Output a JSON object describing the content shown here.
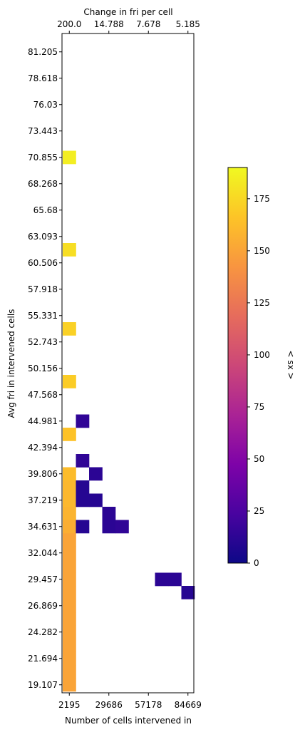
{
  "chart_data": {
    "type": "heatmap",
    "xlabel": "Number of cells intervened in",
    "ylabel": "Avg fri in intervened cells",
    "top_xlabel": "Change in fri per cell",
    "colorbar_label": "< sx >",
    "colormap": "plasma",
    "value_range": [
      0,
      190
    ],
    "grid": false,
    "legend": "colorbar right",
    "n_cols": 10,
    "n_rows": 30,
    "x_ticks": [
      {
        "col": 0.5,
        "label": "2195"
      },
      {
        "col": 3.5,
        "label": "29686"
      },
      {
        "col": 6.5,
        "label": "57178"
      },
      {
        "col": 9.5,
        "label": "84669"
      }
    ],
    "top_ticks": [
      {
        "col": 0.5,
        "label": "200.0"
      },
      {
        "col": 3.5,
        "label": "14.788"
      },
      {
        "col": 6.5,
        "label": "7.678"
      },
      {
        "col": 9.5,
        "label": "5.185"
      }
    ],
    "y_ticks": [
      {
        "row": 0.5,
        "label": "19.107"
      },
      {
        "row": 2.5,
        "label": "21.694"
      },
      {
        "row": 4.5,
        "label": "24.282"
      },
      {
        "row": 6.5,
        "label": "26.869"
      },
      {
        "row": 8.5,
        "label": "29.457"
      },
      {
        "row": 10.5,
        "label": "32.044"
      },
      {
        "row": 12.5,
        "label": "34.631"
      },
      {
        "row": 14.5,
        "label": "37.219"
      },
      {
        "row": 16.5,
        "label": "39.806"
      },
      {
        "row": 18.5,
        "label": "42.394"
      },
      {
        "row": 20.5,
        "label": "44.981"
      },
      {
        "row": 22.5,
        "label": "47.568"
      },
      {
        "row": 24.5,
        "label": "50.156"
      },
      {
        "row": 26.5,
        "label": "52.743"
      },
      {
        "row": 28.5,
        "label": "55.331"
      },
      {
        "row": 30.5,
        "label": "57.918"
      },
      {
        "row": 32.5,
        "label": "60.506"
      },
      {
        "row": 34.5,
        "label": "63.093"
      },
      {
        "row": 36.5,
        "label": "65.68"
      },
      {
        "row": 38.5,
        "label": "68.268"
      },
      {
        "row": 40.5,
        "label": "70.855"
      },
      {
        "row": 42.5,
        "label": "73.443"
      },
      {
        "row": 44.5,
        "label": "76.03"
      },
      {
        "row": 46.5,
        "label": "78.618"
      },
      {
        "row": 48.5,
        "label": "81.205"
      }
    ],
    "colorbar_ticks": [
      {
        "value": 0,
        "label": "0"
      },
      {
        "value": 25,
        "label": "25"
      },
      {
        "value": 50,
        "label": "50"
      },
      {
        "value": 75,
        "label": "75"
      },
      {
        "value": 100,
        "label": "100"
      },
      {
        "value": 125,
        "label": "125"
      },
      {
        "value": 150,
        "label": "150"
      },
      {
        "value": 175,
        "label": "175"
      }
    ],
    "cells": [
      {
        "col": 0,
        "row": 0,
        "value": 150
      },
      {
        "col": 0,
        "row": 1,
        "value": 150
      },
      {
        "col": 0,
        "row": 2,
        "value": 150
      },
      {
        "col": 0,
        "row": 3,
        "value": 150
      },
      {
        "col": 0,
        "row": 4,
        "value": 150
      },
      {
        "col": 0,
        "row": 5,
        "value": 150
      },
      {
        "col": 0,
        "row": 6,
        "value": 150
      },
      {
        "col": 0,
        "row": 7,
        "value": 150
      },
      {
        "col": 0,
        "row": 8,
        "value": 150
      },
      {
        "col": 0,
        "row": 9,
        "value": 150
      },
      {
        "col": 0,
        "row": 10,
        "value": 150
      },
      {
        "col": 0,
        "row": 11,
        "value": 150
      },
      {
        "col": 0,
        "row": 12,
        "value": 155
      },
      {
        "col": 0,
        "row": 13,
        "value": 158
      },
      {
        "col": 0,
        "row": 14,
        "value": 160
      },
      {
        "col": 0,
        "row": 15,
        "value": 160
      },
      {
        "col": 0,
        "row": 16,
        "value": 162
      },
      {
        "col": 0,
        "row": 19,
        "value": 165
      },
      {
        "col": 0,
        "row": 23,
        "value": 170
      },
      {
        "col": 0,
        "row": 27,
        "value": 172
      },
      {
        "col": 0,
        "row": 33,
        "value": 178
      },
      {
        "col": 0,
        "row": 40,
        "value": 185
      },
      {
        "col": 1,
        "row": 12,
        "value": 10
      },
      {
        "col": 1,
        "row": 14,
        "value": 10
      },
      {
        "col": 1,
        "row": 15,
        "value": 10
      },
      {
        "col": 1,
        "row": 17,
        "value": 14
      },
      {
        "col": 1,
        "row": 20,
        "value": 14
      },
      {
        "col": 2,
        "row": 14,
        "value": 10
      },
      {
        "col": 2,
        "row": 16,
        "value": 12
      },
      {
        "col": 3,
        "row": 12,
        "value": 12
      },
      {
        "col": 3,
        "row": 13,
        "value": 12
      },
      {
        "col": 4,
        "row": 12,
        "value": 14
      },
      {
        "col": 7,
        "row": 8,
        "value": 12
      },
      {
        "col": 8,
        "row": 8,
        "value": 12
      },
      {
        "col": 9,
        "row": 7,
        "value": 10
      }
    ]
  }
}
